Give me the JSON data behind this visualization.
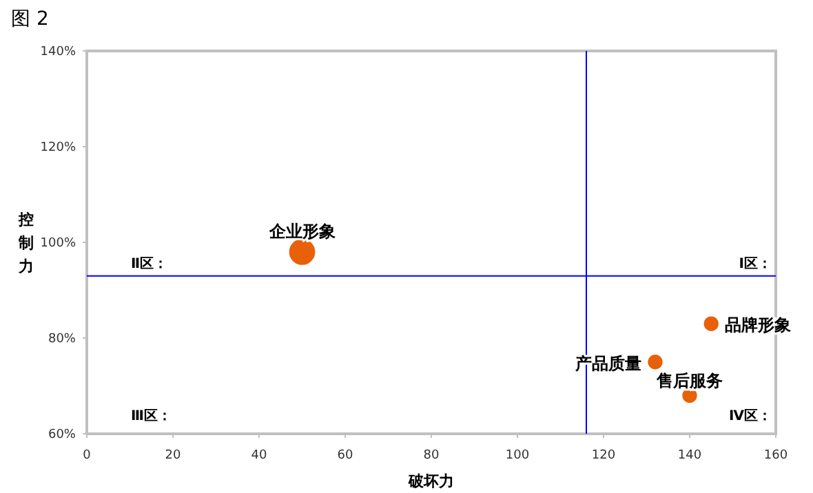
{
  "chart_data": {
    "type": "bubble",
    "title": "图 2",
    "xlabel": "破坏力",
    "ylabel": "控制力",
    "xlim": [
      0,
      160
    ],
    "xticks": [
      0,
      20,
      40,
      60,
      80,
      100,
      120,
      140,
      160
    ],
    "ylim": [
      60,
      140
    ],
    "yticks": [
      {
        "value": 60,
        "label": "60%"
      },
      {
        "value": 80,
        "label": "80%"
      },
      {
        "value": 100,
        "label": "100%"
      },
      {
        "value": 120,
        "label": "120%"
      },
      {
        "value": 140,
        "label": "140%"
      }
    ],
    "grid": false,
    "series": [
      {
        "name": "企业形象",
        "color": "#e8600a",
        "x": [
          50
        ],
        "values": [
          98
        ],
        "sizes": [
          1
        ]
      },
      {
        "name": "品牌形象",
        "color": "#e8600a",
        "x": [
          145
        ],
        "values": [
          83
        ],
        "sizes": [
          0.3
        ]
      },
      {
        "name": "产品质量",
        "color": "#e8600a",
        "x": [
          132
        ],
        "values": [
          75
        ],
        "sizes": [
          0.3
        ]
      },
      {
        "name": "售后服务",
        "color": "#e8600a",
        "x": [
          140
        ],
        "values": [
          68
        ],
        "sizes": [
          0.3
        ]
      }
    ],
    "ref_lines": [
      {
        "axis": "x",
        "value": 116,
        "color": "#0000ff"
      },
      {
        "axis": "y",
        "value": 93,
        "color": "#0000ff"
      }
    ],
    "annotations": [
      "Ⅱ区：",
      "Ⅰ区：",
      "Ⅲ区：",
      "Ⅳ区："
    ]
  }
}
